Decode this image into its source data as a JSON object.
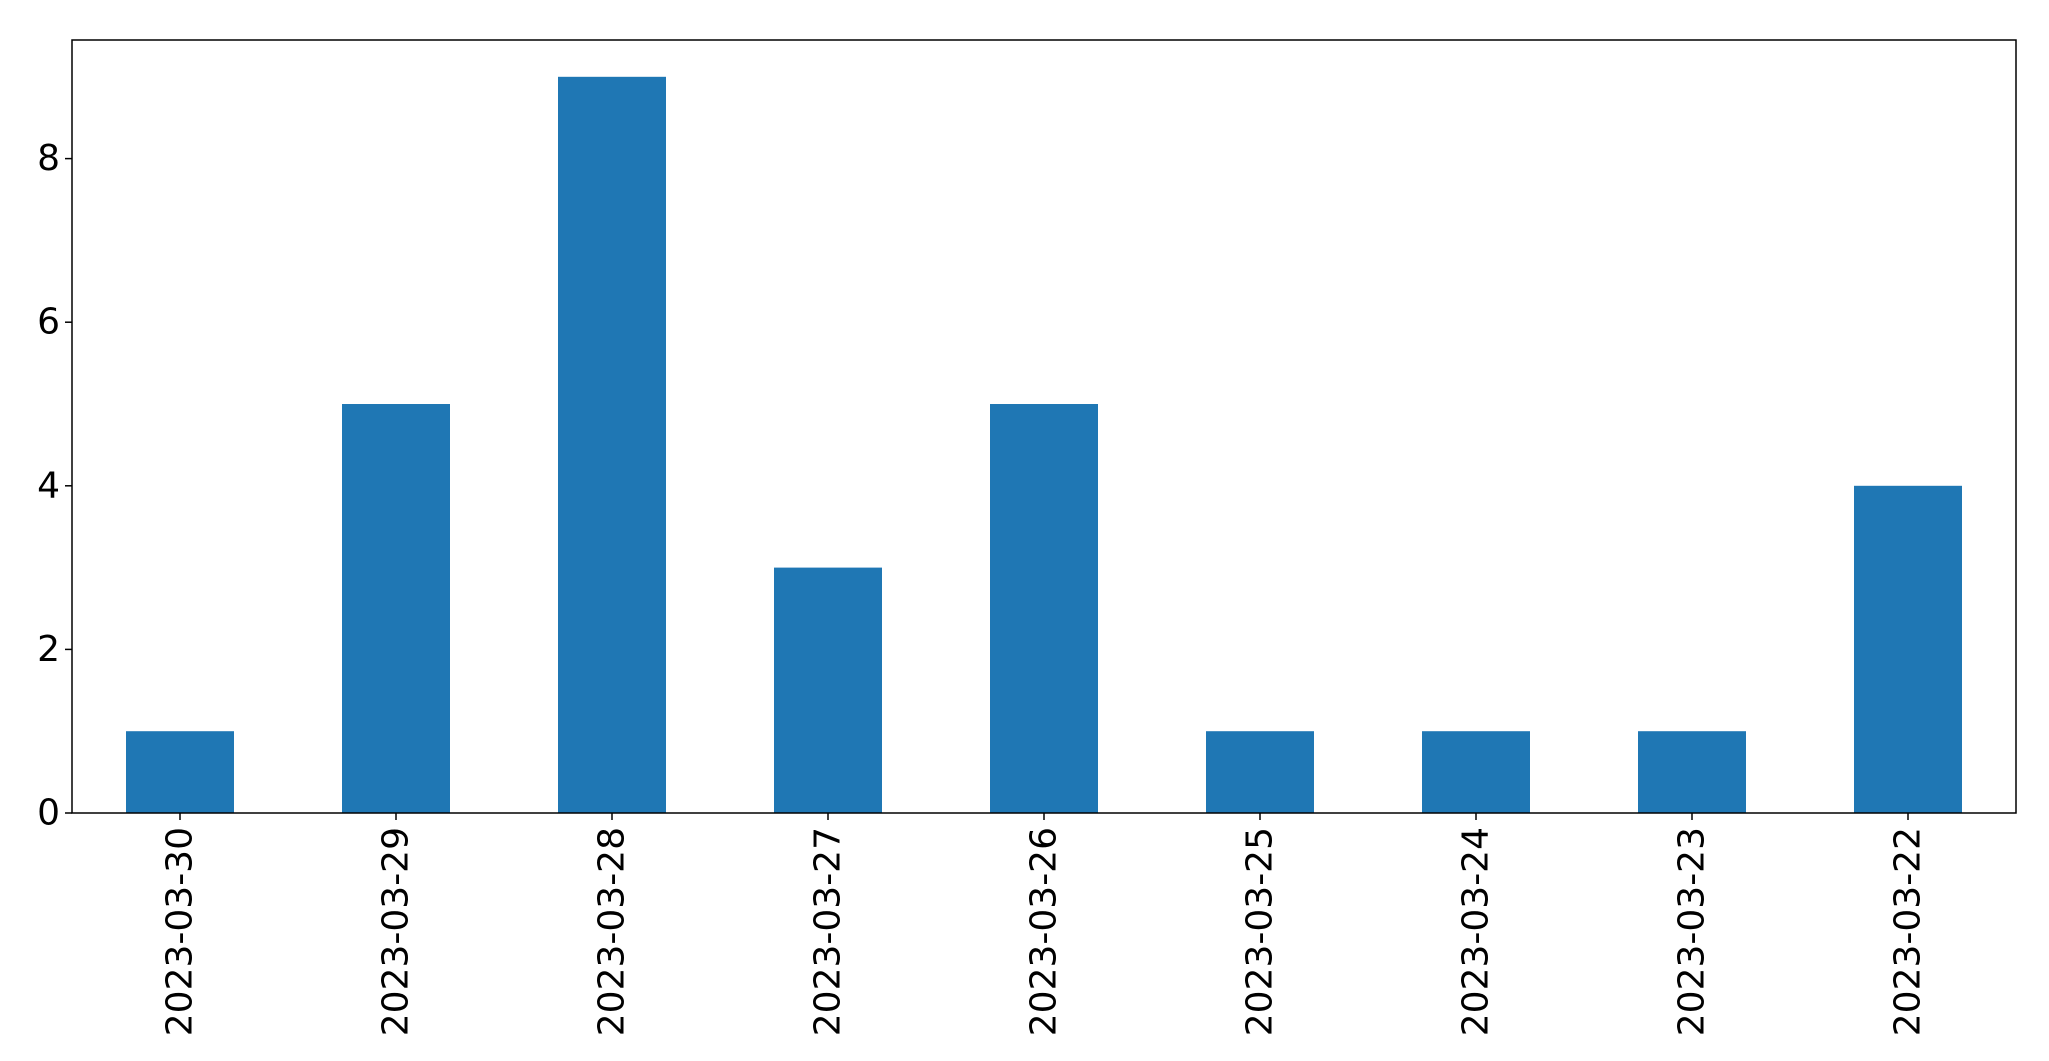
{
  "chart_data": {
    "type": "bar",
    "title": "",
    "xlabel": "",
    "ylabel": "",
    "categories": [
      "2023-03-30",
      "2023-03-29",
      "2023-03-28",
      "2023-03-27",
      "2023-03-26",
      "2023-03-25",
      "2023-03-24",
      "2023-03-23",
      "2023-03-22"
    ],
    "values": [
      1,
      5,
      9,
      3,
      5,
      1,
      1,
      1,
      4
    ],
    "ylim": [
      0,
      9.45
    ],
    "yticks": [
      0,
      2,
      4,
      6,
      8
    ],
    "grid": false,
    "legend": "none",
    "bar_color": "#1f77b4",
    "x_tick_rotation": "vertical"
  }
}
